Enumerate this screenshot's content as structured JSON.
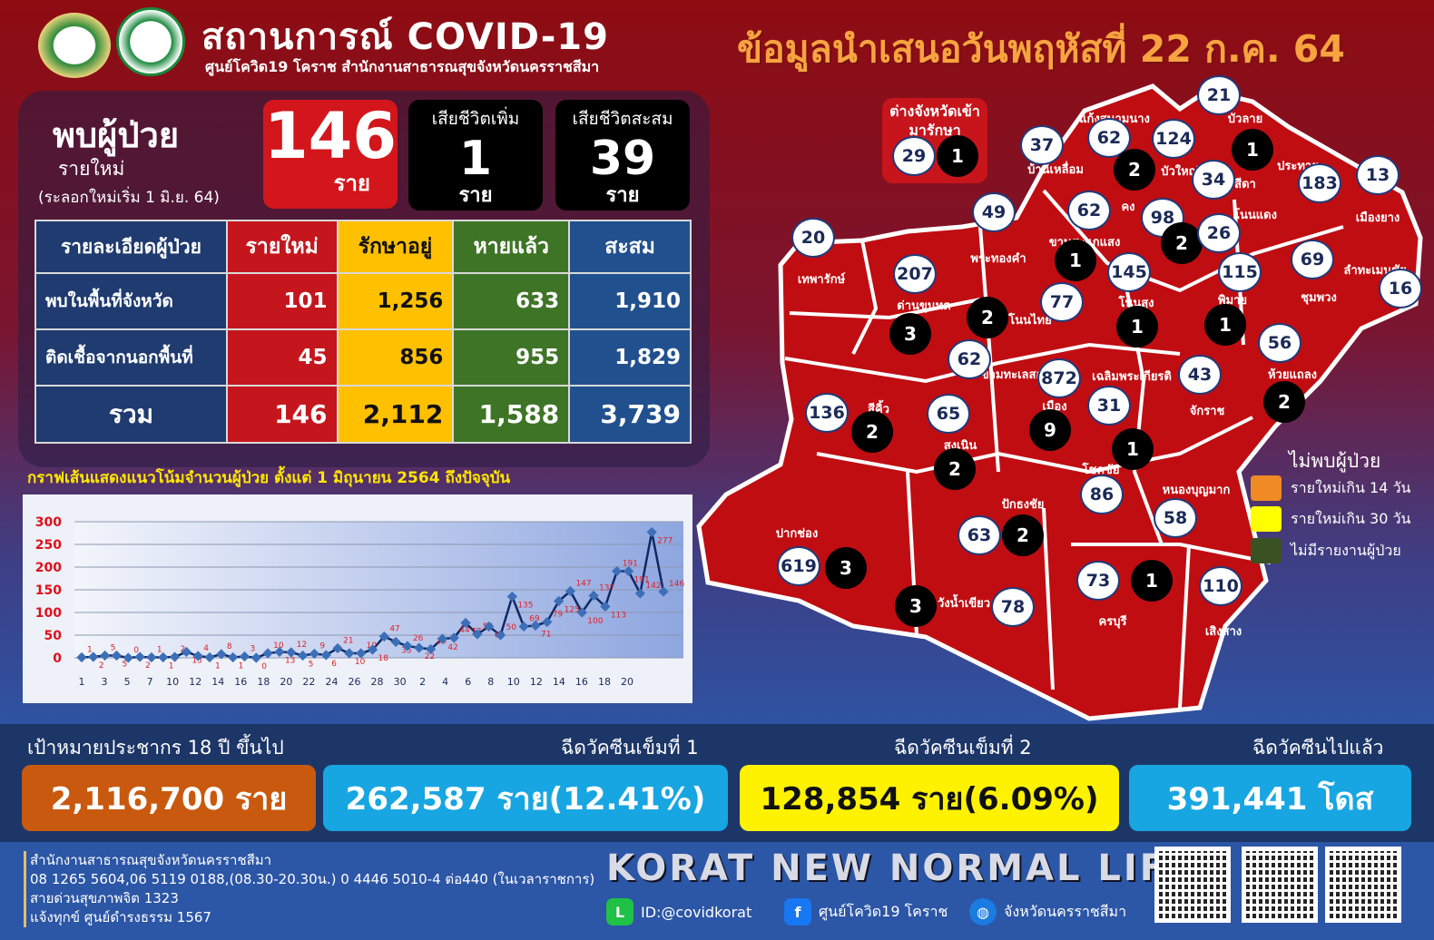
{
  "header": {
    "title": "สถานการณ์ COVID-19",
    "subtitle": "ศูนย์โควิด19 โคราช สำนักงานสาธารณสุขจังหวัดนครราชสีมา",
    "date_title": "ข้อมูลนำเสนอวันพฤหัสที่ 22 ก.ค. 64",
    "logos": [
      "provincial-health-office-seal",
      "ministry-of-public-health-logo"
    ]
  },
  "summary": {
    "found_title": "พบผู้ป่วย",
    "found_sub": "รายใหม่",
    "found_note": "(ระลอกใหม่เริ่ม 1 มิ.ย. 64)",
    "new_cases": "146",
    "new_unit": "ราย",
    "deaths_new_label": "เสียชีวิตเพิ่ม",
    "deaths_new": "1",
    "deaths_new_unit": "ราย",
    "deaths_total_label": "เสียชีวิตสะสม",
    "deaths_total": "39",
    "deaths_total_unit": "ราย"
  },
  "table": {
    "headers": [
      "รายละเอียดผู้ป่วย",
      "รายใหม่",
      "รักษาอยู่",
      "หายแล้ว",
      "สะสม"
    ],
    "rows": [
      [
        "พบในพื้นที่จังหวัด",
        "101",
        "1,256",
        "633",
        "1,910"
      ],
      [
        "ติดเชื้อจากนอกพื้นที่",
        "45",
        "856",
        "955",
        "1,829"
      ],
      [
        "รวม",
        "146",
        "2,112",
        "1,588",
        "3,739"
      ]
    ]
  },
  "chart_title": "กราฟเส้นแสดงแนวโน้มจำนวนผู้ป่วย ตั้งแต่ 1 มิถุนายน 2564 ถึงปัจจุบัน",
  "chart_data": {
    "type": "line",
    "ylim": [
      0,
      300
    ],
    "yticks": [
      "0",
      "50",
      "100",
      "150",
      "200",
      "250",
      "300"
    ],
    "grid": true,
    "xtick_labels": [
      "1",
      "3",
      "5",
      "7",
      "10",
      "12",
      "14",
      "16",
      "18",
      "20",
      "22",
      "24",
      "26",
      "28",
      "30",
      "2",
      "4",
      "6",
      "8",
      "10",
      "12",
      "14",
      "16",
      "18",
      "20"
    ],
    "x": [
      "1",
      "2",
      "3",
      "4",
      "5",
      "6",
      "7",
      "8",
      "9",
      "10",
      "11",
      "12",
      "13",
      "14",
      "15",
      "16",
      "17",
      "18",
      "19",
      "20",
      "21",
      "22",
      "23",
      "24",
      "25",
      "26",
      "27",
      "28",
      "29",
      "30",
      "1",
      "2",
      "3",
      "4",
      "5",
      "6",
      "7",
      "8",
      "9",
      "10",
      "11",
      "12",
      "13",
      "14",
      "15",
      "16",
      "17",
      "18",
      "19",
      "20",
      "21"
    ],
    "values": [
      1,
      2,
      5,
      5,
      0,
      2,
      1,
      1,
      2,
      13,
      4,
      1,
      8,
      1,
      3,
      0,
      10,
      13,
      12,
      5,
      9,
      6,
      21,
      10,
      10,
      18,
      47,
      35,
      26,
      22,
      19,
      42,
      44,
      77,
      52,
      69,
      50,
      135,
      69,
      71,
      79,
      125,
      147,
      100,
      137,
      113,
      191,
      191,
      142,
      277,
      146
    ],
    "line_color": "#0d2a66",
    "marker_color": "#3d6fb8",
    "label_color": "#e0202a"
  },
  "map": {
    "out_of_province": {
      "label": "ต่างจังหวัดเข้ามารักษา",
      "cases": "29",
      "deaths": "1"
    },
    "districts": [
      {
        "name": "บัวลาย",
        "cases": "21",
        "deaths": "1"
      },
      {
        "name": "แก้งสนามนาง",
        "cases": "62",
        "deaths": ""
      },
      {
        "name": "บ้านเหลื่อม",
        "cases": "37",
        "deaths": ""
      },
      {
        "name": "บัวใหญ่",
        "cases": "124",
        "deaths": "2"
      },
      {
        "name": "สีดา",
        "cases": "34",
        "deaths": ""
      },
      {
        "name": "ประทาย",
        "cases": "183",
        "deaths": ""
      },
      {
        "name": "เมืองยาง",
        "cases": "13",
        "deaths": ""
      },
      {
        "name": "พระทองคำ",
        "cases": "49",
        "deaths": ""
      },
      {
        "name": "ขามสะแกแสง",
        "cases": "62",
        "deaths": "1"
      },
      {
        "name": "คง",
        "cases": "98",
        "deaths": "2"
      },
      {
        "name": "โนนแดง",
        "cases": "26",
        "deaths": ""
      },
      {
        "name": "เทพารักษ์",
        "cases": "20",
        "deaths": ""
      },
      {
        "name": "ด่านขุนทด",
        "cases": "207",
        "deaths": "3"
      },
      {
        "name": "โนนไทย",
        "cases": "77",
        "deaths": "2"
      },
      {
        "name": "โนนสูง",
        "cases": "145",
        "deaths": "1"
      },
      {
        "name": "พิมาย",
        "cases": "115",
        "deaths": "1"
      },
      {
        "name": "ชุมพวง",
        "cases": "69",
        "deaths": ""
      },
      {
        "name": "ลำทะเมนชัย",
        "cases": "16",
        "deaths": ""
      },
      {
        "name": "ห้วยแถลง",
        "cases": "56",
        "deaths": "2"
      },
      {
        "name": "ขามทะเลสอ",
        "cases": "62",
        "deaths": ""
      },
      {
        "name": "เมือง",
        "cases": "872",
        "deaths": "9"
      },
      {
        "name": "เฉลิมพระเกียรติ",
        "cases": "31",
        "deaths": ""
      },
      {
        "name": "จักราช",
        "cases": "43",
        "deaths": ""
      },
      {
        "name": "สีคิ้ว",
        "cases": "136",
        "deaths": "2"
      },
      {
        "name": "สูงเนิน",
        "cases": "65",
        "deaths": "2"
      },
      {
        "name": "โชคชัย",
        "cases": "86",
        "deaths": "1"
      },
      {
        "name": "หนองบุญมาก",
        "cases": "58",
        "deaths": ""
      },
      {
        "name": "ปักธงชัย",
        "cases": "63",
        "deaths": "2"
      },
      {
        "name": "ปากช่อง",
        "cases": "619",
        "deaths": "3"
      },
      {
        "name": "วังน้ำเขียว",
        "cases": "78",
        "deaths": "3"
      },
      {
        "name": "ครบุรี",
        "cases": "73",
        "deaths": "1"
      },
      {
        "name": "เสิงสาง",
        "cases": "110",
        "deaths": ""
      }
    ],
    "fill_color": "#c00d12",
    "legend": {
      "title": "ไม่พบผู้ป่วย",
      "items": [
        {
          "label": "รายใหม่เกิน 14 วัน",
          "color": "#f08a24"
        },
        {
          "label": "รายใหม่เกิน 30 วัน",
          "color": "#ffff00"
        },
        {
          "label": "ไม่มีรายงานผู้ป่วย",
          "color": "#3a5222"
        }
      ]
    }
  },
  "vaccine": {
    "target_label": "เป้าหมายประชากร 18 ปี ขึ้นไป",
    "target_value": "2,116,700 ราย",
    "dose1_label": "ฉีดวัคซีนเข็มที่ 1",
    "dose1_value": "262,587 ราย(12.41%)",
    "dose2_label": "ฉีดวัคซีนเข็มที่ 2",
    "dose2_value": "128,854 ราย(6.09%)",
    "total_label": "ฉีดวัคซีนไปแล้ว",
    "total_value": "391,441 โดส"
  },
  "footer": {
    "lines": [
      "สำนักงานสาธารณสุขจังหวัดนครราชสีมา",
      "08 1265 5604,06 5119 0188,(08.30-20.30น.) 0 4446 5010-4 ต่อ440 (ในเวลาราชการ)",
      "สายด่วนสุขภาพจิต 1323",
      "แจ้งทุกข์ ศูนย์ดำรงธรรม 1567"
    ],
    "slogan": "KORAT NEW NORMAL LIFE",
    "line_id": "ID:@covidkorat",
    "facebook": "ศูนย์โควิด19 โคราช",
    "website": "จังหวัดนครราชสีมา"
  }
}
